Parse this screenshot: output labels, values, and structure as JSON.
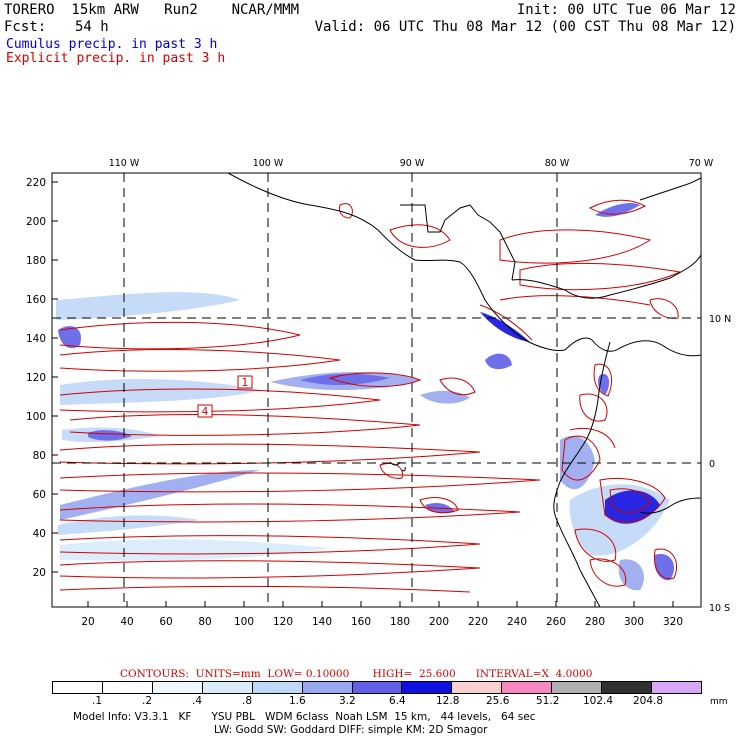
{
  "header": {
    "model_line": "TORERO  15km ARW   Run2    NCAR/MMM",
    "init": "Init: 00 UTC Tue 06 Mar 12",
    "fcst_label": "Fcst:",
    "fcst_hours": "54 h",
    "valid": "Valid: 06 UTC Thu 08 Mar 12 (00 CST Thu 08 Mar 12)"
  },
  "legend": {
    "cumulus": "Cumulus precip. in past 3 h",
    "explicit": "Explicit precip. in past 3 h",
    "cumulus_color": "#0000cc",
    "explicit_color": "#d10000"
  },
  "map": {
    "lon_labels": [
      "110 W",
      "100 W",
      "90 W",
      "80 W",
      "70 W"
    ],
    "lat_labels": [
      "10 N",
      "0",
      "10 S"
    ],
    "y_ticks": [
      "220",
      "200",
      "180",
      "160",
      "140",
      "120",
      "100",
      "80",
      "60",
      "40",
      "20"
    ],
    "x_ticks": [
      "20",
      "40",
      "60",
      "80",
      "100",
      "120",
      "140",
      "160",
      "180",
      "200",
      "220",
      "240",
      "260",
      "280",
      "300",
      "320"
    ],
    "box_labels": [
      "1",
      "4"
    ]
  },
  "contours": {
    "text": "CONTOURS:  UNITS=mm  LOW= 0.10000       HIGH=  25.600      INTERVAL=X  4.0000"
  },
  "colorbar": {
    "labels": [
      ".1",
      ".2",
      ".4",
      ".8",
      "1.6",
      "3.2",
      "6.4",
      "12.8",
      "25.6",
      "51.2",
      "102.4",
      "204.8"
    ],
    "unit": "mm",
    "colors": [
      "#ffffff",
      "#ffffff",
      "#f0f8ff",
      "#d8ecfa",
      "#c0d8f8",
      "#98a8f0",
      "#6060e8",
      "#1010e0",
      "#fcd0d0",
      "#f888c0",
      "#b0b0b0",
      "#303030",
      "#d8a8f8"
    ]
  },
  "footer": {
    "line1": "Model Info: V3.3.1   KF      YSU PBL   WDM 6class  Noah LSM  15 km,   44 levels,   64 sec",
    "line2": "LW: Godd SW: Goddard DIFF: simple KM: 2D Smagor"
  }
}
